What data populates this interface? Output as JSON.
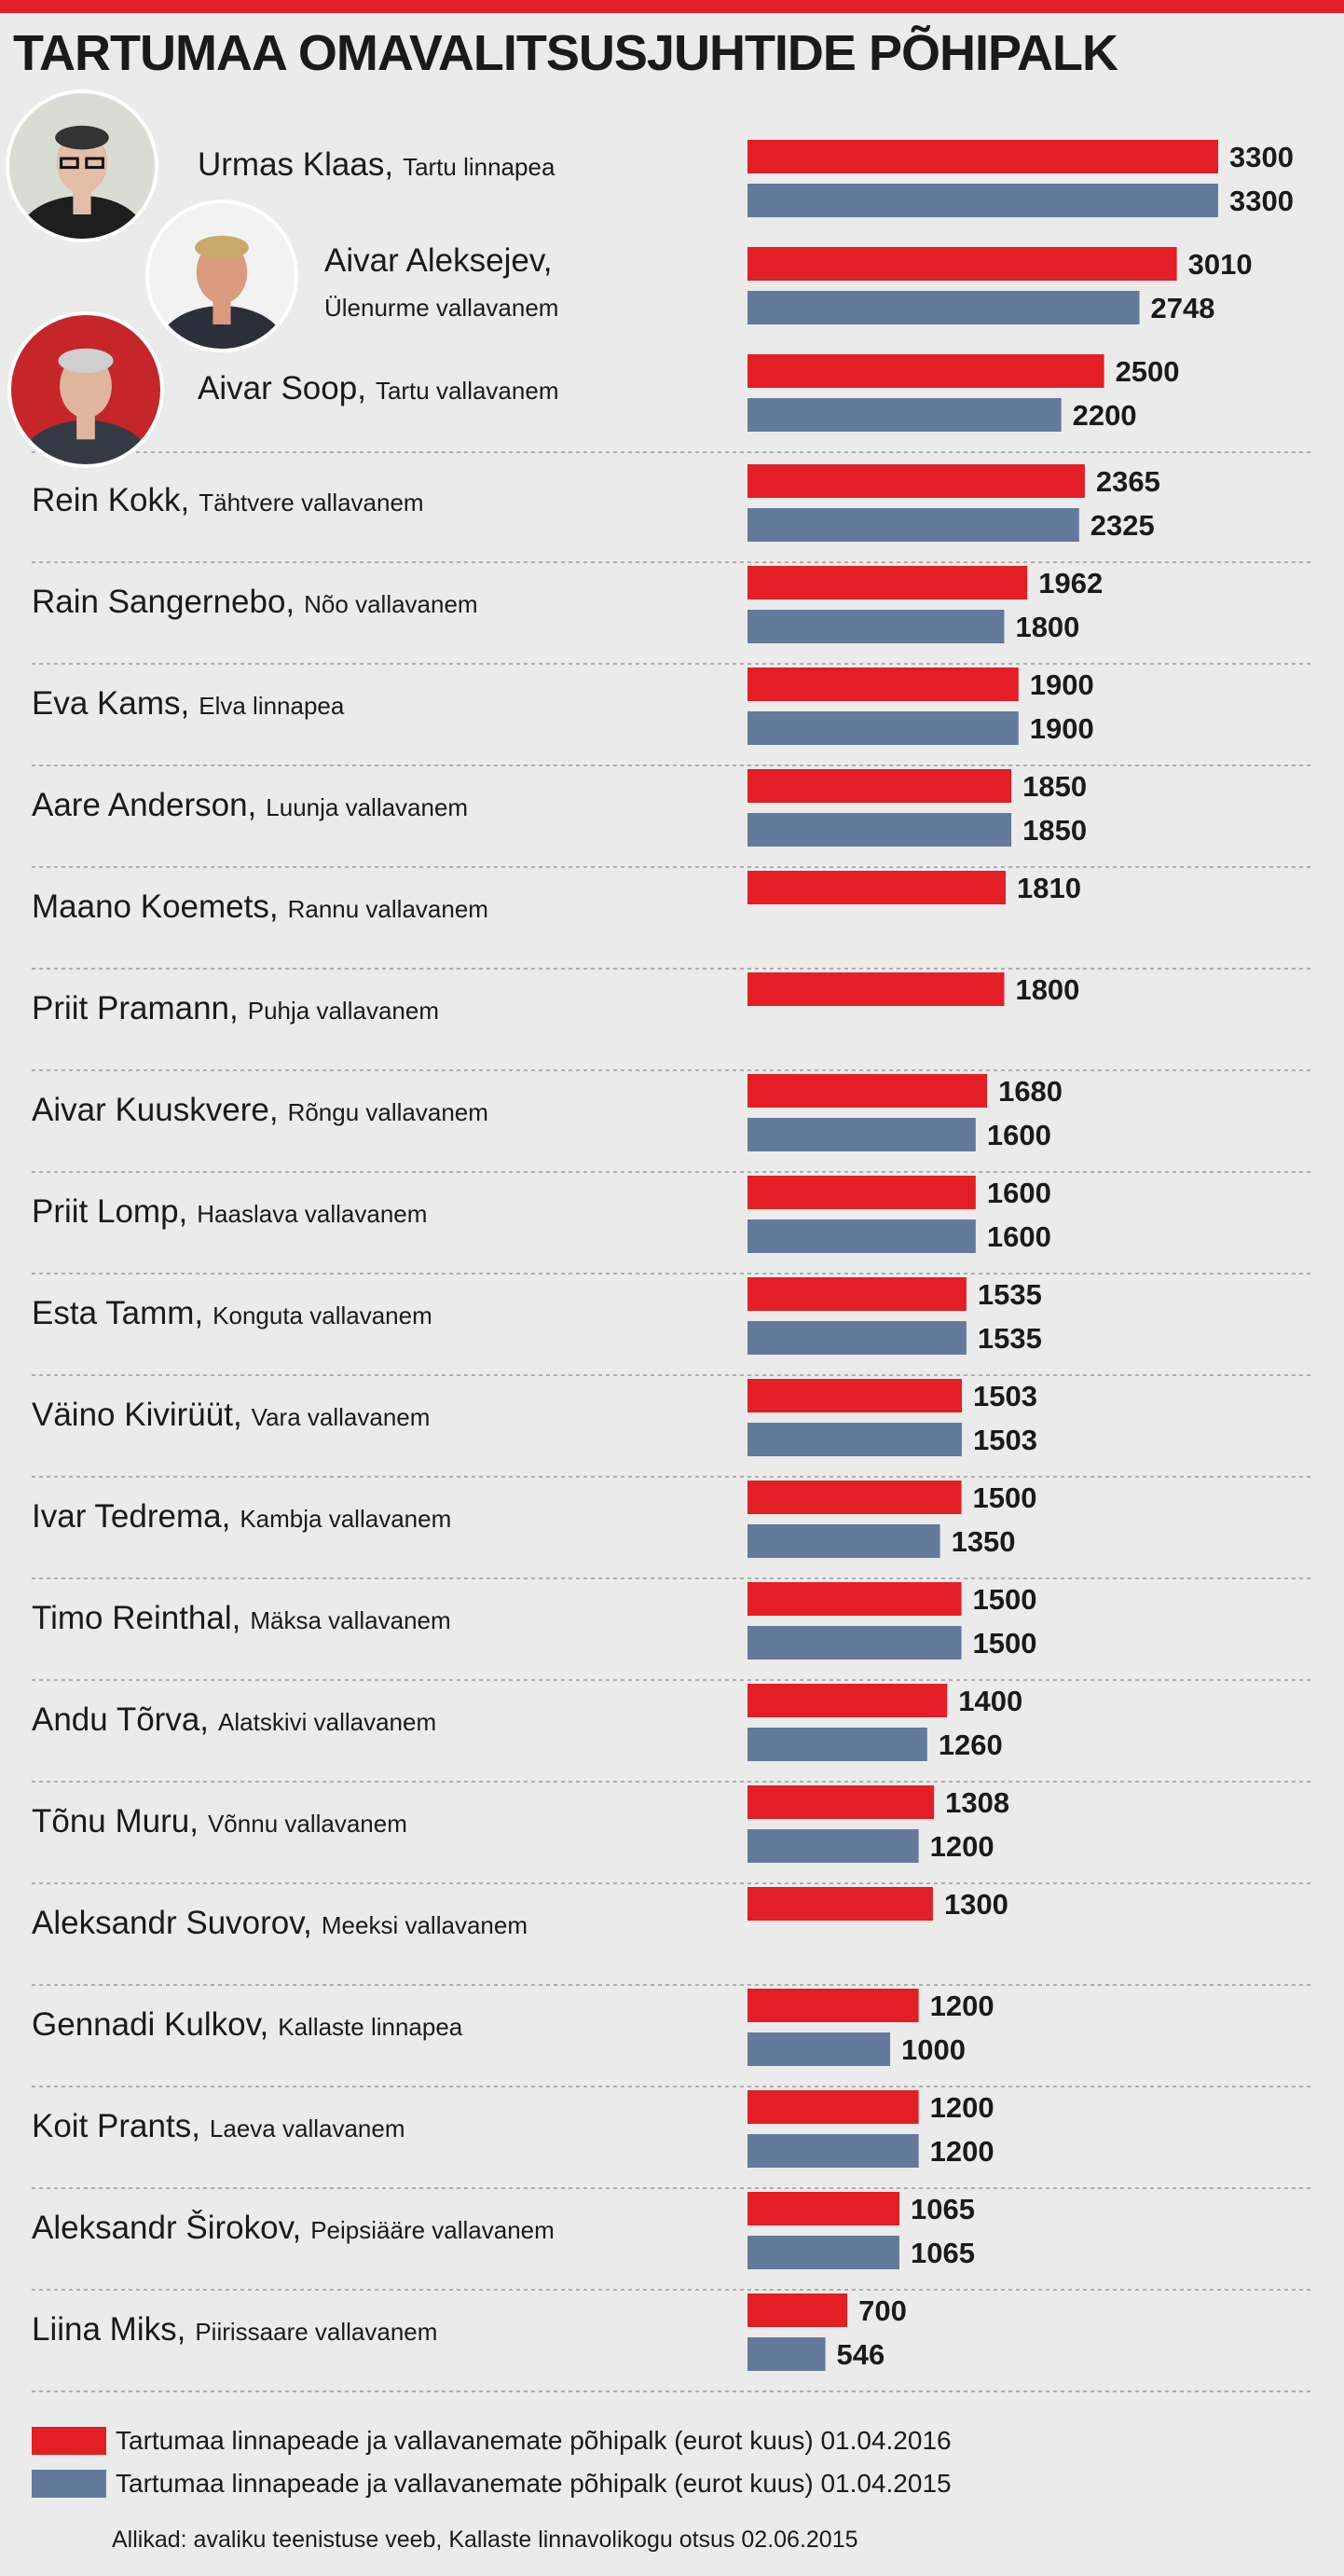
{
  "title": "TARTUMAA OMAVALITSUSJUHTIDE PÕHIPALK",
  "chart_data": {
    "type": "bar",
    "orientation": "horizontal",
    "title": "TARTUMAA OMAVALITSUSJUHTIDE PÕHIPALK",
    "categories": [
      {
        "name": "Urmas Klaas,",
        "role": "Tartu linnapea"
      },
      {
        "name": "Aivar Aleksejev,",
        "role": "Ülenurme vallavanem"
      },
      {
        "name": "Aivar Soop,",
        "role": "Tartu vallavanem"
      },
      {
        "name": "Rein Kokk,",
        "role": "Tähtvere vallavanem"
      },
      {
        "name": "Rain Sangernebo,",
        "role": "Nõo vallavanem"
      },
      {
        "name": "Eva Kams,",
        "role": "Elva linnapea"
      },
      {
        "name": "Aare Anderson,",
        "role": "Luunja vallavanem"
      },
      {
        "name": "Maano Koemets,",
        "role": "Rannu vallavanem"
      },
      {
        "name": "Priit Pramann,",
        "role": "Puhja vallavanem"
      },
      {
        "name": "Aivar Kuuskvere,",
        "role": "Rõngu vallavanem"
      },
      {
        "name": "Priit Lomp,",
        "role": "Haaslava vallavanem"
      },
      {
        "name": "Esta Tamm,",
        "role": "Konguta vallavanem"
      },
      {
        "name": "Väino Kivirüüt,",
        "role": "Vara vallavanem"
      },
      {
        "name": "Ivar Tedrema,",
        "role": "Kambja vallavanem"
      },
      {
        "name": "Timo Reinthal,",
        "role": "Mäksa vallavanem"
      },
      {
        "name": "Andu Tõrva,",
        "role": "Alatskivi vallavanem"
      },
      {
        "name": "Tõnu Muru,",
        "role": "Võnnu vallavanem"
      },
      {
        "name": "Aleksandr Suvorov,",
        "role": "Meeksi vallavanem"
      },
      {
        "name": "Gennadi Kulkov,",
        "role": "Kallaste linnapea"
      },
      {
        "name": "Koit Prants,",
        "role": "Laeva vallavanem"
      },
      {
        "name": "Aleksandr Širokov,",
        "role": "Peipsiääre vallavanem"
      },
      {
        "name": "Liina Miks,",
        "role": "Piirissaare vallavanem"
      }
    ],
    "series": [
      {
        "name": "Tartumaa linnapeade ja vallavanemate põhipalk (eurot kuus) 01.04.2016",
        "color": "#e31e24",
        "values": [
          3300,
          3010,
          2500,
          2365,
          1962,
          1900,
          1850,
          1810,
          1800,
          1680,
          1600,
          1535,
          1503,
          1500,
          1500,
          1400,
          1308,
          1300,
          1200,
          1200,
          1065,
          700
        ]
      },
      {
        "name": "Tartumaa linnapeade ja vallavanemate põhipalk (eurot kuus) 01.04.2015",
        "color": "#647a9d",
        "values": [
          3300,
          2748,
          2200,
          2325,
          1800,
          1900,
          1850,
          null,
          null,
          1600,
          1600,
          1535,
          1503,
          1350,
          1500,
          1260,
          1200,
          null,
          1000,
          1200,
          1065,
          546
        ]
      }
    ],
    "xlim": [
      0,
      3300
    ],
    "legend": "bottom",
    "grid": false
  },
  "photos": [
    {
      "person": "Urmas Klaas",
      "icon": "portrait-photo"
    },
    {
      "person": "Aivar Aleksejev",
      "icon": "portrait-photo"
    },
    {
      "person": "Aivar Soop",
      "icon": "portrait-photo"
    }
  ],
  "source": "Allikad: avaliku teenistuse veeb, Kallaste linnavolikogu otsus 02.06.2015"
}
